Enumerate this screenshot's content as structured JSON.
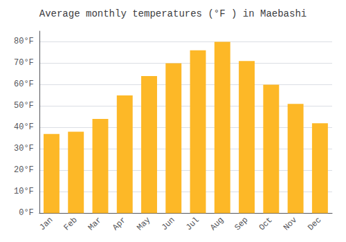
{
  "chart_data": {
    "type": "bar",
    "title": "Average monthly temperatures (°F ) in Maebashi",
    "categories": [
      "Jan",
      "Feb",
      "Mar",
      "Apr",
      "May",
      "Jun",
      "Jul",
      "Aug",
      "Sep",
      "Oct",
      "Nov",
      "Dec"
    ],
    "values": [
      37,
      38,
      44,
      55,
      64,
      70,
      76,
      80,
      71,
      60,
      51,
      42
    ],
    "color": "#FDB827",
    "ylim": [
      0,
      85
    ],
    "yticks": [
      {
        "value": 0,
        "label": "0°F"
      },
      {
        "value": 10,
        "label": "10°F"
      },
      {
        "value": 20,
        "label": "20°F"
      },
      {
        "value": 30,
        "label": "30°F"
      },
      {
        "value": 40,
        "label": "40°F"
      },
      {
        "value": 50,
        "label": "50°F"
      },
      {
        "value": 60,
        "label": "60°F"
      },
      {
        "value": 70,
        "label": "70°F"
      },
      {
        "value": 80,
        "label": "80°F"
      }
    ],
    "grid": true
  }
}
